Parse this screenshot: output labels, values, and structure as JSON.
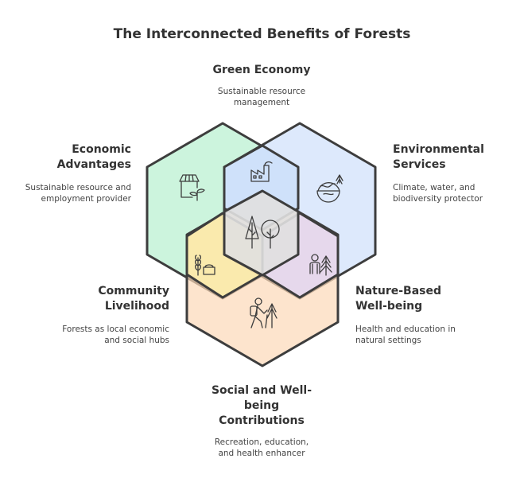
{
  "title": "The Interconnected Benefits of Forests",
  "colors": {
    "economic": "#b7f0cf",
    "environmental": "#cfe0fb",
    "community": "#fdeca6",
    "nature": "#e2d6f7",
    "social": "#fcd9b8",
    "center": "#e0e0e0",
    "outline": "#3d3d3d"
  },
  "sections": {
    "green_economy": {
      "heading": "Green Economy",
      "desc1": "Sustainable resource",
      "desc2": "management",
      "icon": "factory-icon"
    },
    "economic": {
      "heading1": "Economic",
      "heading2": "Advantages",
      "desc1": "Sustainable resource and",
      "desc2": "employment provider",
      "icon": "store-plant-icon"
    },
    "environmental": {
      "heading1": "Environmental",
      "heading2": "Services",
      "desc1": "Climate, water, and",
      "desc2": "biodiversity protector",
      "icon": "globe-tree-icon"
    },
    "community": {
      "heading1": "Community",
      "heading2": "Livelihood",
      "desc1": "Forests as local economic",
      "desc2": "and social hubs",
      "icon": "wheat-basket-icon"
    },
    "nature": {
      "heading1": "Nature-Based",
      "heading2": "Well-being",
      "desc1": "Health and education in",
      "desc2": "natural settings",
      "icon": "person-tree-icon"
    },
    "social": {
      "heading1": "Social and Well-",
      "heading2": "being",
      "heading3": "Contributions",
      "desc1": "Recreation, education,",
      "desc2": "and health enhancer",
      "icon": "hiker-icon"
    },
    "center": {
      "icon": "forest-trees-icon"
    }
  }
}
